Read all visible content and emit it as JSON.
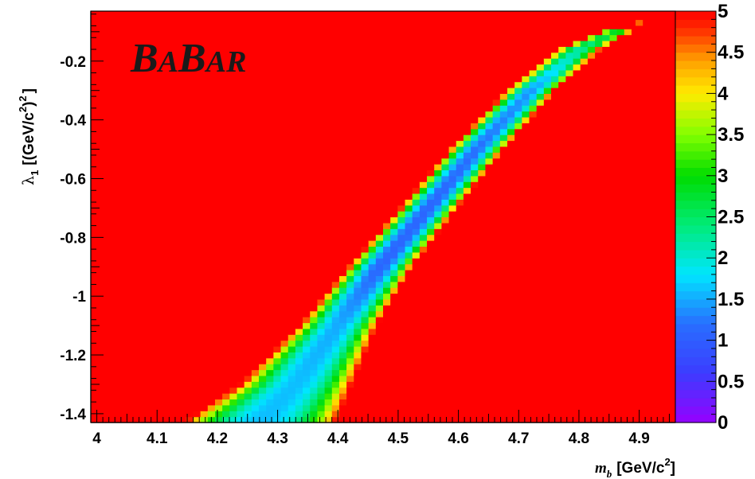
{
  "chart_data": {
    "type": "heatmap",
    "title": "",
    "logo_text": {
      "b1": "B",
      "a1": "A",
      "b2": "B",
      "a2": "AR"
    },
    "xlabel": {
      "symbol": "m",
      "subscript": "b",
      "units": "[GeV/c",
      "sup": "2",
      "close": "]"
    },
    "ylabel": {
      "symbol": "λ",
      "subscript": "1",
      "units": "[(GeV/c",
      "sup": "2",
      "close": ")",
      "sup2": "2",
      "end": "]"
    },
    "xlim": [
      3.99,
      4.96
    ],
    "ylim": [
      -1.43,
      -0.03
    ],
    "x_ticks": [
      4.0,
      4.1,
      4.2,
      4.3,
      4.4,
      4.5,
      4.6,
      4.7,
      4.8,
      4.9
    ],
    "x_tick_labels": [
      "4",
      "4.1",
      "4.2",
      "4.3",
      "4.4",
      "4.5",
      "4.6",
      "4.7",
      "4.8",
      "4.9"
    ],
    "y_ticks": [
      -1.4,
      -1.2,
      -1.0,
      -0.8,
      -0.6,
      -0.4,
      -0.2
    ],
    "y_tick_labels": [
      "-1.4",
      "-1.2",
      "-1",
      "-0.8",
      "-0.6",
      "-0.4",
      "-0.2"
    ],
    "colorbar": {
      "min": 0,
      "max": 5,
      "ticks": [
        0,
        0.5,
        1,
        1.5,
        2,
        2.5,
        3,
        3.5,
        4,
        4.5,
        5
      ],
      "tick_labels": [
        "0",
        "0.5",
        "1",
        "1.5",
        "2",
        "2.5",
        "3",
        "3.5",
        "4",
        "4.5",
        "5"
      ]
    },
    "background_value": 5,
    "band": {
      "center": [
        [
          4.27,
          -1.43
        ],
        [
          4.33,
          -1.3
        ],
        [
          4.4,
          -1.1
        ],
        [
          4.47,
          -0.9
        ],
        [
          4.55,
          -0.7
        ],
        [
          4.63,
          -0.5
        ],
        [
          4.72,
          -0.3
        ],
        [
          4.8,
          -0.16
        ],
        [
          4.86,
          -0.1
        ]
      ],
      "half_width": [
        [
          4.27,
          -1.43,
          0.11
        ],
        [
          4.33,
          -1.3,
          0.08
        ],
        [
          4.4,
          -1.1,
          0.055
        ],
        [
          4.47,
          -0.9,
          0.045
        ],
        [
          4.55,
          -0.7,
          0.04
        ],
        [
          4.63,
          -0.5,
          0.038
        ],
        [
          4.72,
          -0.3,
          0.034
        ],
        [
          4.8,
          -0.16,
          0.03
        ],
        [
          4.86,
          -0.1,
          0.022
        ]
      ],
      "min_value": [
        [
          4.27,
          -1.43,
          1.6
        ],
        [
          4.33,
          -1.3,
          1.6
        ],
        [
          4.4,
          -1.1,
          1.5
        ],
        [
          4.47,
          -0.9,
          1.1
        ],
        [
          4.55,
          -0.7,
          1.1
        ],
        [
          4.63,
          -0.5,
          1.2
        ],
        [
          4.72,
          -0.3,
          1.4
        ],
        [
          4.8,
          -0.16,
          2.2
        ],
        [
          4.86,
          -0.1,
          2.8
        ]
      ]
    },
    "isolated_cells": [
      [
        4.9,
        -0.07,
        4.6
      ]
    ],
    "legend": "colorbar-right",
    "grid": false
  }
}
